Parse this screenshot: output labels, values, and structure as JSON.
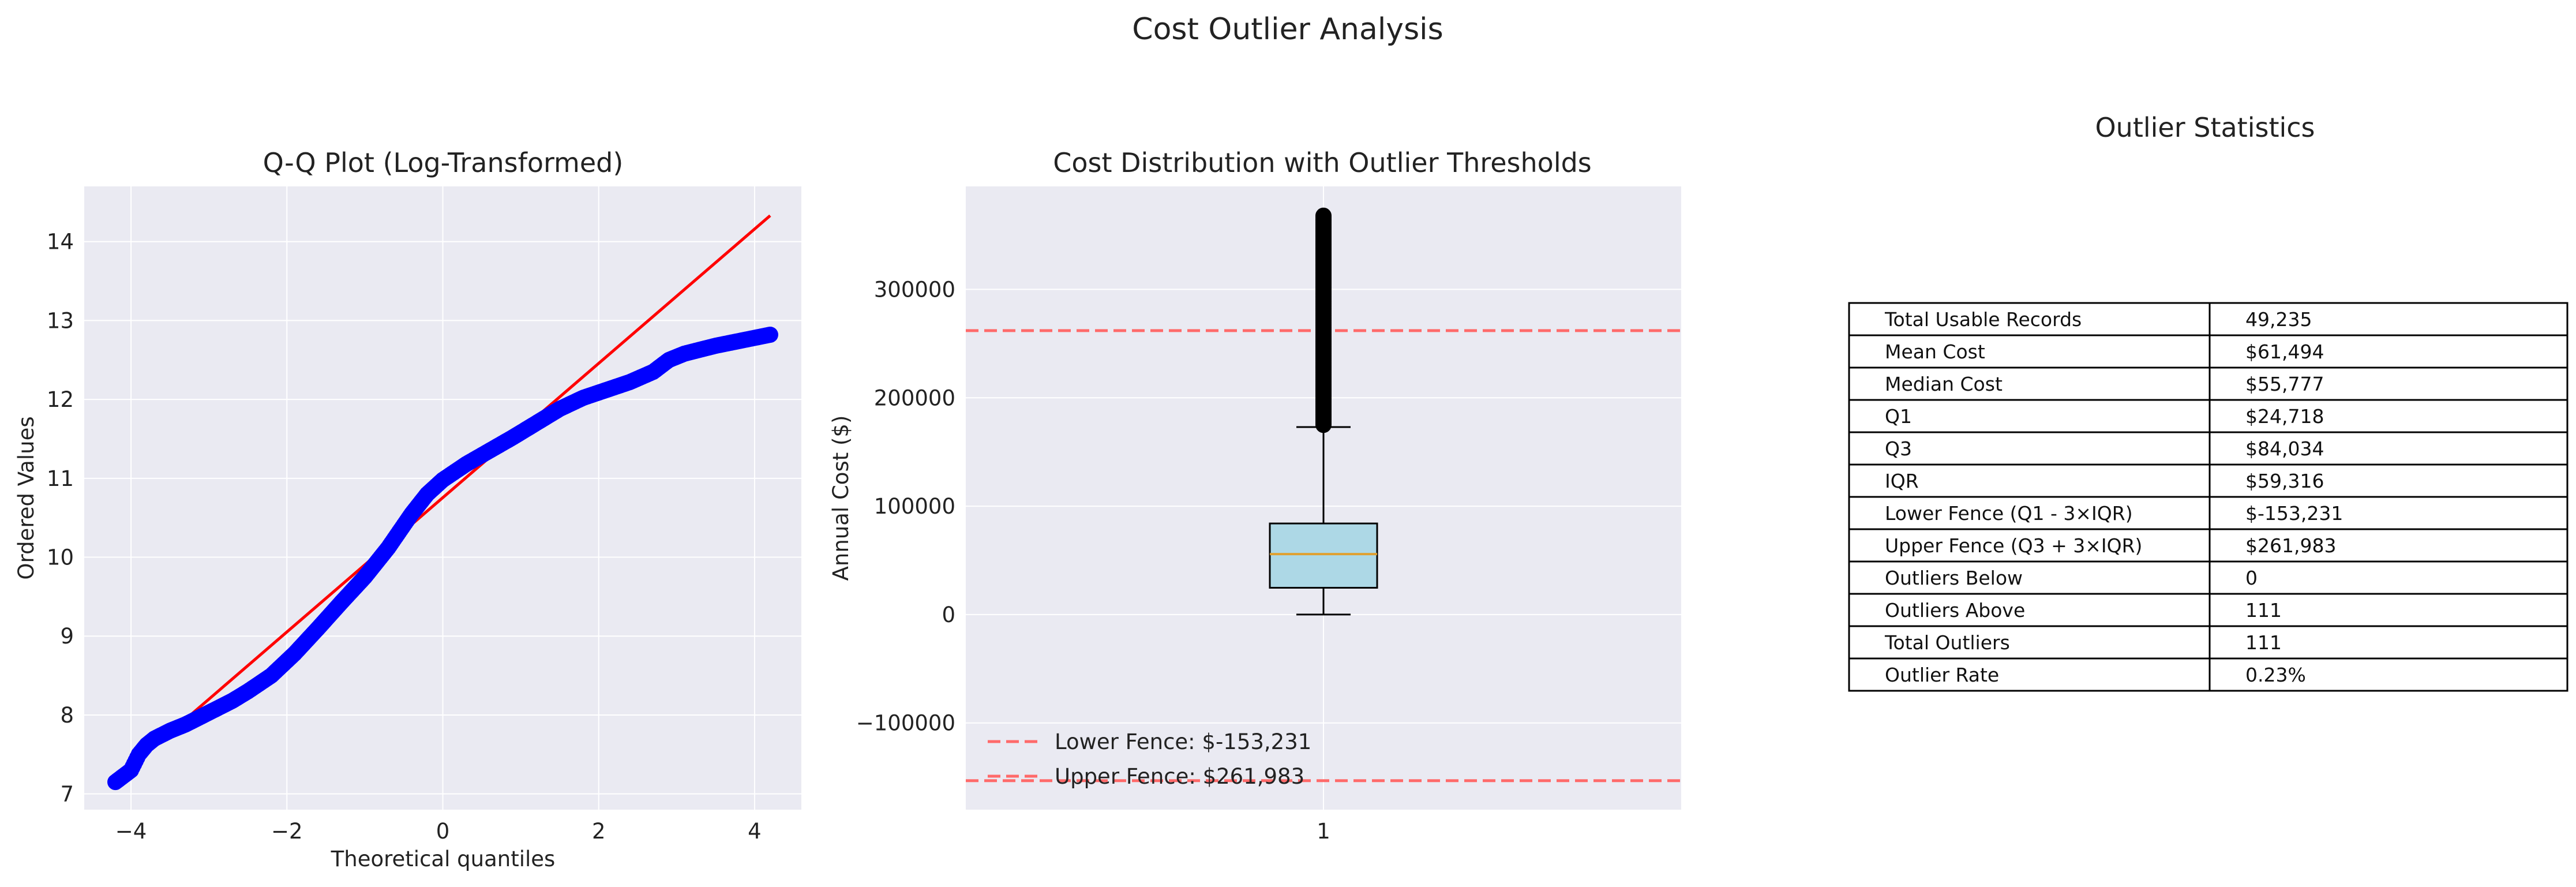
{
  "figure": {
    "suptitle": "Cost Outlier Analysis"
  },
  "chart_data": [
    {
      "type": "scatter",
      "title": "Q-Q Plot (Log-Transformed)",
      "xlabel": "Theoretical quantiles",
      "ylabel": "Ordered Values",
      "xlim": [
        -4.6,
        4.6
      ],
      "ylim": [
        6.8,
        14.7
      ],
      "xticks": [
        -4,
        -2,
        0,
        2,
        4
      ],
      "yticks": [
        7,
        8,
        9,
        10,
        11,
        12,
        13,
        14
      ],
      "grid": true,
      "colors": {
        "points": "#0000ff",
        "line": "#ff0000",
        "background": "#eaeaf2"
      },
      "points": [
        [
          -4.2,
          7.15
        ],
        [
          -4.0,
          7.3
        ],
        [
          -3.9,
          7.5
        ],
        [
          -3.8,
          7.62
        ],
        [
          -3.7,
          7.7
        ],
        [
          -3.6,
          7.75
        ],
        [
          -3.5,
          7.8
        ],
        [
          -3.3,
          7.88
        ],
        [
          -3.1,
          7.98
        ],
        [
          -2.9,
          8.08
        ],
        [
          -2.7,
          8.18
        ],
        [
          -2.5,
          8.3
        ],
        [
          -2.2,
          8.5
        ],
        [
          -1.9,
          8.78
        ],
        [
          -1.6,
          9.1
        ],
        [
          -1.3,
          9.43
        ],
        [
          -1.0,
          9.75
        ],
        [
          -0.7,
          10.12
        ],
        [
          -0.4,
          10.55
        ],
        [
          -0.2,
          10.8
        ],
        [
          0.0,
          10.98
        ],
        [
          0.3,
          11.18
        ],
        [
          0.6,
          11.35
        ],
        [
          0.9,
          11.52
        ],
        [
          1.2,
          11.7
        ],
        [
          1.5,
          11.88
        ],
        [
          1.8,
          12.02
        ],
        [
          2.1,
          12.12
        ],
        [
          2.4,
          12.22
        ],
        [
          2.7,
          12.35
        ],
        [
          2.9,
          12.5
        ],
        [
          3.1,
          12.58
        ],
        [
          3.3,
          12.63
        ],
        [
          3.5,
          12.68
        ],
        [
          3.7,
          12.72
        ],
        [
          3.85,
          12.75
        ],
        [
          4.0,
          12.78
        ],
        [
          4.2,
          12.82
        ]
      ],
      "reference_line": {
        "x": [
          -4.0,
          4.2
        ],
        "y": [
          7.35,
          14.33
        ]
      }
    },
    {
      "type": "box",
      "title": "Cost Distribution with Outlier Thresholds",
      "ylabel": "Annual Cost ($)",
      "xticks": [
        "1"
      ],
      "ylim": [
        -180000,
        395000
      ],
      "yticks": [
        -100000,
        0,
        100000,
        200000,
        300000
      ],
      "grid": true,
      "box": {
        "whisker_low": 0,
        "q1": 24718,
        "median": 55777,
        "q3": 84034,
        "whisker_high": 173000
      },
      "outliers": [
        175000,
        180000,
        186000,
        192000,
        198000,
        205000,
        212000,
        220000,
        228000,
        236000,
        244000,
        252000,
        260000,
        268000,
        276000,
        284000,
        292000,
        300000,
        310000,
        320000,
        330000,
        340000,
        350000,
        360000,
        368000
      ],
      "lines": [
        {
          "label": "Lower Fence: $-153,231",
          "value": -153231
        },
        {
          "label": "Upper Fence: $261,983",
          "value": 261983
        }
      ],
      "legend": "lower-left",
      "colors": {
        "box": "#add8e6",
        "median": "#e0a030",
        "fence": "#ff6a6a",
        "background": "#eaeaf2"
      }
    },
    {
      "type": "table",
      "title": "Outlier Statistics",
      "rows": [
        [
          "Total Usable Records",
          "49,235"
        ],
        [
          "Mean Cost",
          "$61,494"
        ],
        [
          "Median Cost",
          "$55,777"
        ],
        [
          "Q1",
          "$24,718"
        ],
        [
          "Q3",
          "$84,034"
        ],
        [
          "IQR",
          "$59,316"
        ],
        [
          "Lower Fence (Q1 - 3×IQR)",
          "$-153,231"
        ],
        [
          "Upper Fence (Q3 + 3×IQR)",
          "$261,983"
        ],
        [
          "Outliers Below",
          "0"
        ],
        [
          "Outliers Above",
          "111"
        ],
        [
          "Total Outliers",
          "111"
        ],
        [
          "Outlier Rate",
          "0.23%"
        ]
      ]
    }
  ]
}
